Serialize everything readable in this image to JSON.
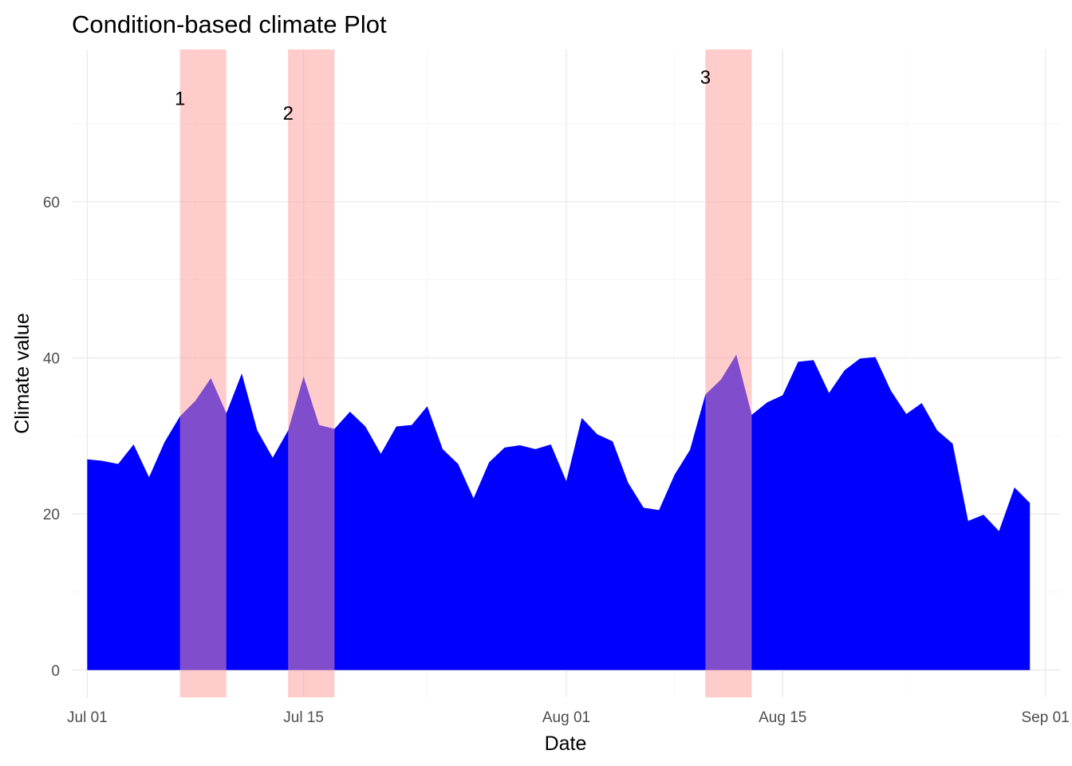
{
  "chart_data": {
    "type": "area",
    "title": "Condition-based climate Plot",
    "xlabel": "Date",
    "ylabel": "Climate value",
    "x_start": "2024-07-01",
    "xlim": [
      "2024-06-30",
      "2024-09-02"
    ],
    "ylim": [
      -3.5,
      79.5
    ],
    "x_ticks": [
      {
        "date": "2024-07-01",
        "label": "Jul 01"
      },
      {
        "date": "2024-07-15",
        "label": "Jul 15"
      },
      {
        "date": "2024-08-01",
        "label": "Aug 01"
      },
      {
        "date": "2024-08-15",
        "label": "Aug 15"
      },
      {
        "date": "2024-09-01",
        "label": "Sep 01"
      }
    ],
    "x_minor_ticks": [
      "2024-07-08",
      "2024-07-23",
      "2024-08-08",
      "2024-08-23"
    ],
    "y_ticks": [
      0,
      20,
      40,
      60
    ],
    "y_minor_ticks": [
      10,
      30,
      50,
      70
    ],
    "grid": true,
    "fill_color": "#0000ff",
    "series": [
      {
        "values": [
          27.0,
          26.8,
          26.4,
          28.9,
          24.7,
          29.2,
          32.5,
          34.5,
          37.4,
          32.9,
          38.0,
          30.7,
          27.2,
          30.7,
          37.6,
          31.4,
          30.9,
          33.1,
          31.2,
          27.7,
          31.2,
          31.4,
          33.8,
          28.3,
          26.4,
          22.0,
          26.6,
          28.5,
          28.8,
          28.3,
          28.9,
          24.2,
          32.3,
          30.2,
          29.3,
          24.0,
          20.8,
          20.5,
          25.0,
          28.2,
          35.3,
          37.2,
          40.4,
          32.7,
          34.3,
          35.2,
          39.5,
          39.7,
          35.5,
          38.4,
          39.9,
          40.1,
          35.8,
          32.8,
          34.2,
          30.7,
          29.0,
          19.1,
          19.9,
          17.8,
          23.4,
          21.4
        ]
      }
    ],
    "bands": [
      {
        "label": "1",
        "start": "2024-07-07",
        "end": "2024-07-10",
        "label_y": 73.2
      },
      {
        "label": "2",
        "start": "2024-07-14",
        "end": "2024-07-17",
        "label_y": 71.3
      },
      {
        "label": "3",
        "start": "2024-08-10",
        "end": "2024-08-13",
        "label_y": 75.9
      }
    ],
    "band_color": "#ff9999"
  }
}
